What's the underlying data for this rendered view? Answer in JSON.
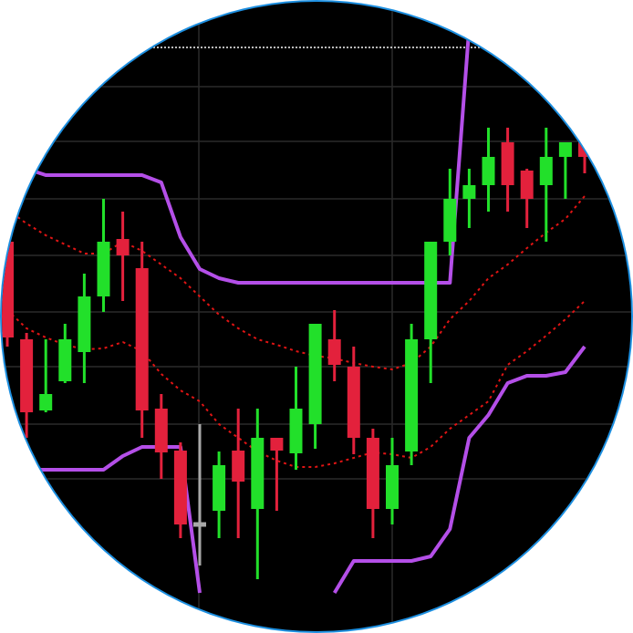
{
  "chart_data": {
    "type": "candlestick",
    "ylim": [
      0,
      694
    ],
    "yticks": [
      599,
      539,
      476,
      414,
      352,
      292,
      229,
      169
    ],
    "grid": true,
    "up_color": "#22e02a",
    "down_color": "#e3213c",
    "doji_color": "#a8a8a8",
    "open": [
      429,
      322,
      244,
      276,
      308,
      369,
      432,
      400,
      246,
      200,
      119,
      134,
      200,
      136,
      214,
      197,
      229,
      322,
      292,
      214,
      136,
      199,
      322,
      429,
      476,
      491,
      538,
      507,
      491,
      522,
      538
    ],
    "high": [
      439,
      329,
      322,
      339,
      394,
      476,
      462,
      429,
      262,
      209,
      229,
      199,
      246,
      246,
      214,
      292,
      339,
      354,
      314,
      224,
      214,
      339,
      429,
      509,
      509,
      554,
      554,
      509,
      554,
      538,
      544
    ],
    "low": [
      314,
      214,
      242,
      274,
      274,
      352,
      364,
      214,
      169,
      104,
      74,
      104,
      104,
      59,
      134,
      179,
      202,
      276,
      196,
      104,
      119,
      184,
      274,
      414,
      444,
      462,
      462,
      444,
      429,
      476,
      504
    ],
    "close": [
      324,
      242,
      262,
      322,
      369,
      429,
      414,
      244,
      198,
      119,
      119,
      184,
      166,
      214,
      200,
      246,
      339,
      294,
      214,
      136,
      184,
      322,
      429,
      476,
      491,
      522,
      491,
      476,
      522,
      538,
      522
    ],
    "series": [
      {
        "color": "#b44fe8",
        "style": "solid",
        "values": [
          524,
          509,
          502,
          502,
          502,
          502,
          502,
          502,
          494,
          434,
          399,
          389,
          384,
          384,
          384,
          384,
          384,
          384,
          384,
          384,
          384,
          384,
          384,
          384,
          664,
          null,
          null,
          null,
          null,
          null,
          null
        ]
      },
      {
        "color": "#b44fe8",
        "style": "solid",
        "values": [
          null,
          179,
          179,
          179,
          179,
          179,
          194,
          204,
          204,
          204,
          44,
          null,
          null,
          null,
          null,
          null,
          null,
          44,
          79,
          79,
          79,
          79,
          84,
          114,
          214,
          239,
          274,
          282,
          282,
          286,
          314
        ]
      },
      {
        "color": "#e01414",
        "style": "dotted",
        "values": [
          464,
          449,
          436,
          426,
          416,
          416,
          429,
          419,
          404,
          389,
          369,
          349,
          334,
          322,
          316,
          309,
          304,
          301,
          296,
          292,
          289,
          296,
          314,
          344,
          364,
          389,
          404,
          422,
          439,
          454,
          479
        ]
      },
      {
        "color": "#e01414",
        "style": "dotted",
        "values": [
          354,
          334,
          324,
          316,
          311,
          312,
          319,
          309,
          284,
          266,
          254,
          229,
          214,
          199,
          189,
          182,
          182,
          186,
          192,
          198,
          196,
          192,
          204,
          224,
          239,
          254,
          294,
          309,
          326,
          344,
          364
        ]
      }
    ]
  }
}
